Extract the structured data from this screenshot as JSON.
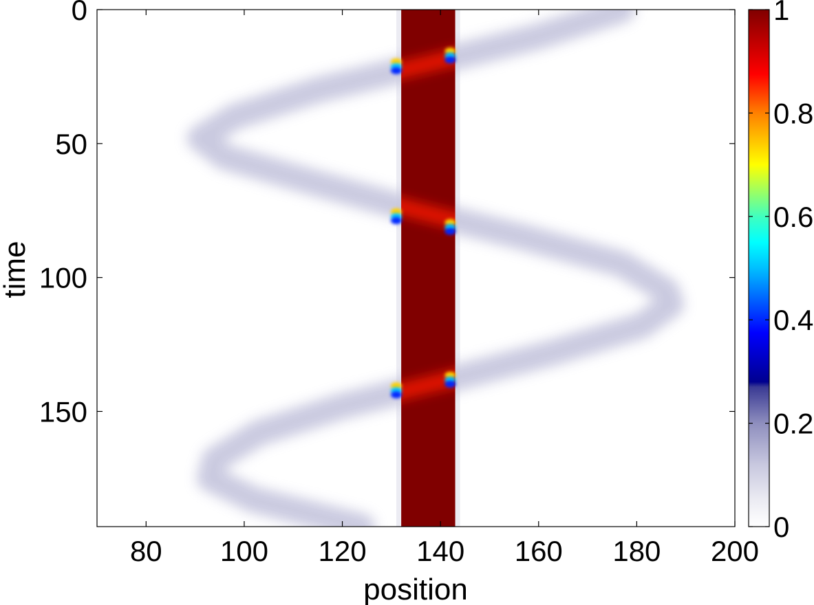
{
  "chart_data": {
    "type": "heatmap",
    "xlabel": "position",
    "ylabel": "time",
    "xlim": [
      70,
      200
    ],
    "ylim": [
      0,
      193
    ],
    "y_direction": "reversed (0 at top)",
    "x_ticks": [
      80,
      100,
      120,
      140,
      160,
      180,
      200
    ],
    "y_ticks": [
      0,
      50,
      100,
      150
    ],
    "colorbar": {
      "range": [
        0,
        1
      ],
      "ticks": [
        0,
        0.2,
        0.4,
        0.6,
        0.8,
        1
      ],
      "tick_labels": [
        "0",
        "0.2",
        "0.4",
        "0.6",
        "0.8",
        "1"
      ],
      "colormap": [
        {
          "v": 0.0,
          "color": "#ffffff"
        },
        {
          "v": 0.05,
          "color": "#ececf3"
        },
        {
          "v": 0.12,
          "color": "#c8c8df"
        },
        {
          "v": 0.2,
          "color": "#8e8ebe"
        },
        {
          "v": 0.27,
          "color": "#3a3a94"
        },
        {
          "v": 0.28,
          "color": "#00008f"
        },
        {
          "v": 0.375,
          "color": "#0000ff"
        },
        {
          "v": 0.5,
          "color": "#00bfff"
        },
        {
          "v": 0.55,
          "color": "#00ffff"
        },
        {
          "v": 0.6,
          "color": "#40ffbf"
        },
        {
          "v": 0.7,
          "color": "#ffff00"
        },
        {
          "v": 0.8,
          "color": "#ff8000"
        },
        {
          "v": 0.875,
          "color": "#ff0000"
        },
        {
          "v": 1.0,
          "color": "#800000"
        }
      ]
    },
    "wall_band": {
      "x": [
        132,
        143
      ],
      "value": 1.0
    },
    "wall_halo": {
      "x": [
        131,
        144
      ],
      "value": 0.05
    },
    "trajectory": {
      "value": 0.12,
      "points": [
        {
          "t": 0,
          "x": 177
        },
        {
          "t": 10,
          "x": 160
        },
        {
          "t": 20,
          "x": 138
        },
        {
          "t": 30,
          "x": 115
        },
        {
          "t": 40,
          "x": 98
        },
        {
          "t": 48,
          "x": 91
        },
        {
          "t": 55,
          "x": 96
        },
        {
          "t": 65,
          "x": 115
        },
        {
          "t": 75,
          "x": 135
        },
        {
          "t": 85,
          "x": 157
        },
        {
          "t": 95,
          "x": 177
        },
        {
          "t": 105,
          "x": 186
        },
        {
          "t": 110,
          "x": 187
        },
        {
          "t": 118,
          "x": 181
        },
        {
          "t": 128,
          "x": 163
        },
        {
          "t": 138,
          "x": 142
        },
        {
          "t": 148,
          "x": 120
        },
        {
          "t": 158,
          "x": 103
        },
        {
          "t": 168,
          "x": 94
        },
        {
          "t": 175,
          "x": 93
        },
        {
          "t": 183,
          "x": 102
        },
        {
          "t": 193,
          "x": 124
        }
      ]
    },
    "crossing_markers": [
      {
        "t": 21,
        "x": 131,
        "value": 0.4
      },
      {
        "t": 17,
        "x": 142,
        "value": 0.4
      },
      {
        "t": 77,
        "x": 131,
        "value": 0.4
      },
      {
        "t": 81,
        "x": 142,
        "value": 0.4
      },
      {
        "t": 142,
        "x": 131,
        "value": 0.4
      },
      {
        "t": 138,
        "x": 142,
        "value": 0.4
      }
    ],
    "grid": false
  }
}
